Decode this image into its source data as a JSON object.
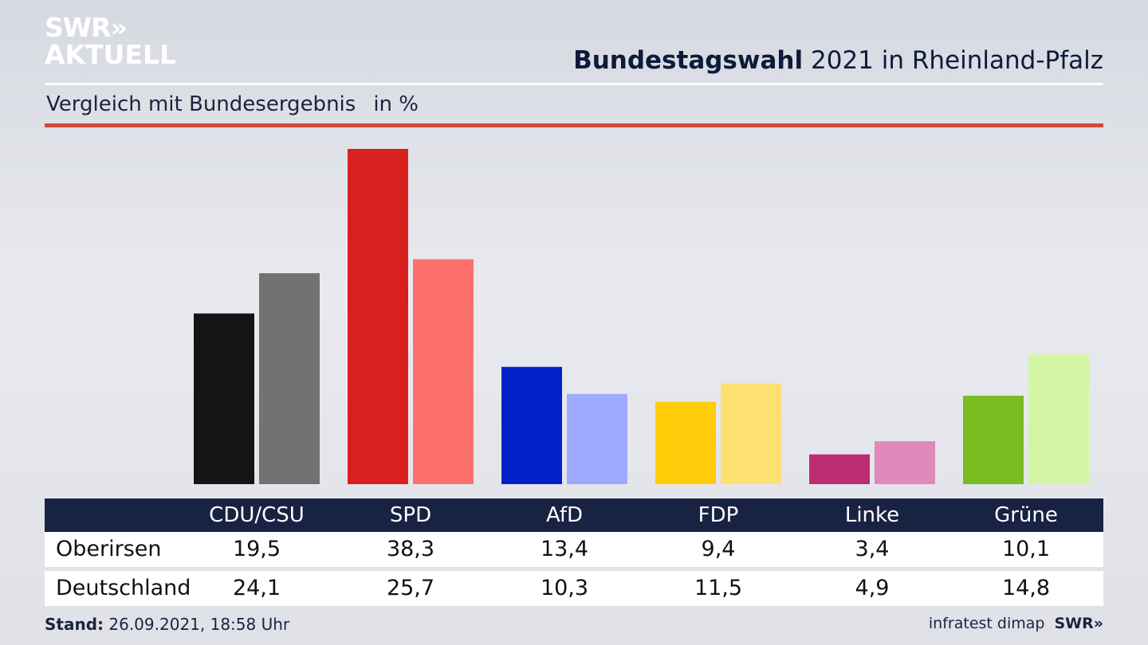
{
  "logo": {
    "line1": "SWR»",
    "line2": "AKTUELL"
  },
  "header": {
    "title_bold": "Bundestagswahl",
    "title_rest": "2021 in Rheinland-Pfalz"
  },
  "subheader": {
    "text": "Vergleich mit Bundesergebnis",
    "unit": "in %"
  },
  "chart_data": {
    "type": "bar",
    "title": "Bundestagswahl 2021 in Rheinland-Pfalz",
    "subtitle": "Vergleich mit Bundesergebnis in %",
    "categories": [
      "CDU/CSU",
      "SPD",
      "AfD",
      "FDP",
      "Linke",
      "Grüne"
    ],
    "series": [
      {
        "name": "Oberirsen",
        "values": [
          19.5,
          38.3,
          13.4,
          9.4,
          3.4,
          10.1
        ],
        "colors": [
          "#141414",
          "#d8201f",
          "#0022c8",
          "#ffcc0a",
          "#bc2c72",
          "#78bd22"
        ]
      },
      {
        "name": "Deutschland",
        "values": [
          24.1,
          25.7,
          10.3,
          11.5,
          4.9,
          14.8
        ],
        "colors": [
          "#737272",
          "#fd716c",
          "#9eaafd",
          "#fde072",
          "#e089ba",
          "#d3f6a5"
        ]
      }
    ],
    "ylim": [
      0,
      38.3
    ],
    "grid": false,
    "legend": "table-below"
  },
  "table": {
    "header_bg": "#182242",
    "rows": [
      {
        "label": "Oberirsen",
        "values": [
          "19,5",
          "38,3",
          "13,4",
          "9,4",
          "3,4",
          "10,1"
        ]
      },
      {
        "label": "Deutschland",
        "values": [
          "24,1",
          "25,7",
          "10,3",
          "11,5",
          "4,9",
          "14,8"
        ]
      }
    ]
  },
  "footer": {
    "stand_label": "Stand:",
    "stand_value": "26.09.2021, 18:58 Uhr",
    "source": "infratest dimap",
    "brand": "SWR»"
  }
}
